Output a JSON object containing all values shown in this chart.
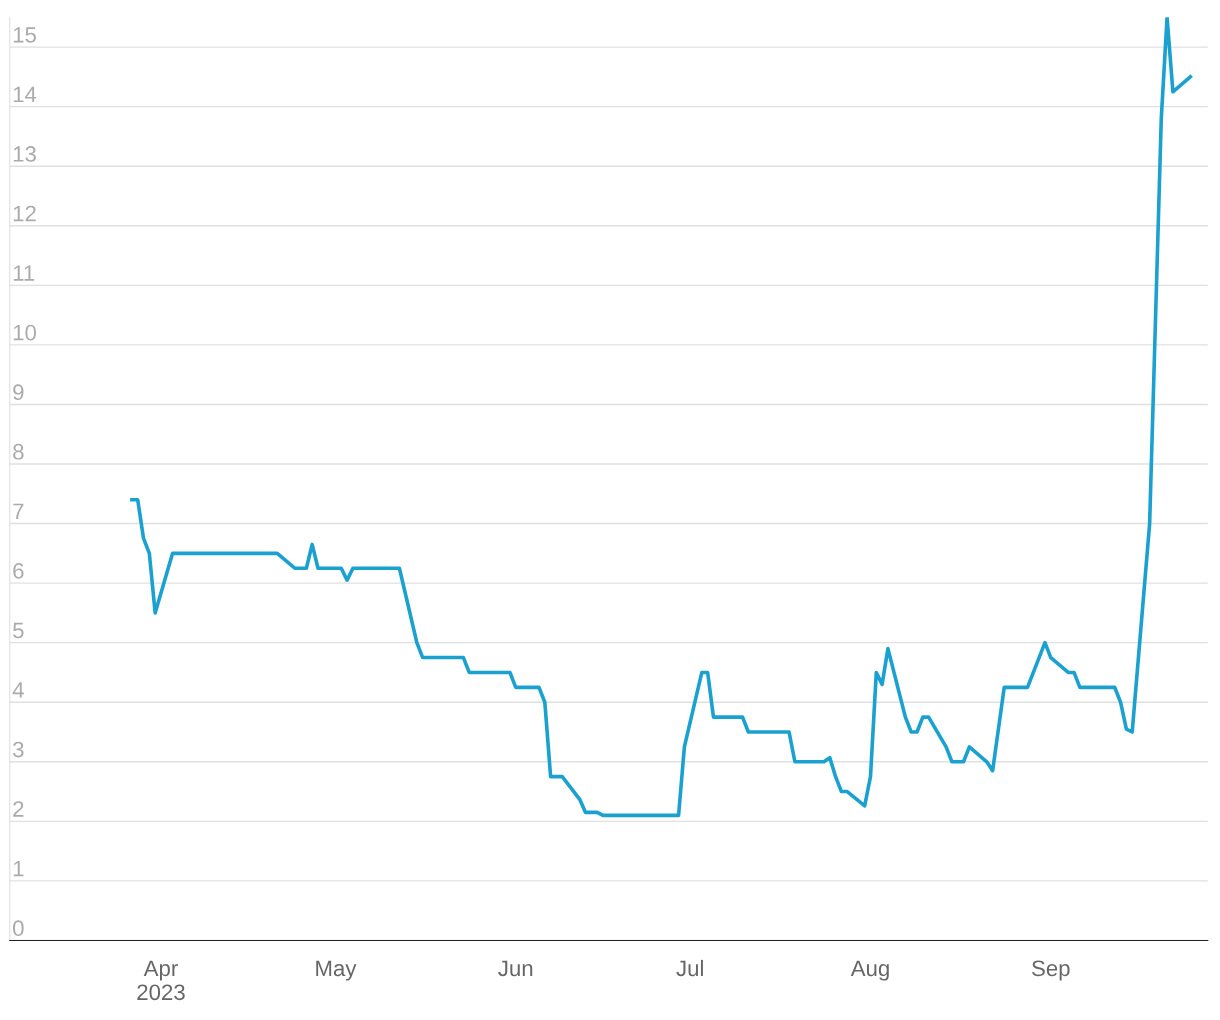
{
  "chart_data": {
    "type": "line",
    "x": [
      "2023-03-27",
      "2023-03-28",
      "2023-03-29",
      "2023-03-30",
      "2023-03-31",
      "2023-04-03",
      "2023-04-21",
      "2023-04-24",
      "2023-04-26",
      "2023-04-27",
      "2023-04-28",
      "2023-05-02",
      "2023-05-03",
      "2023-05-04",
      "2023-05-12",
      "2023-05-15",
      "2023-05-16",
      "2023-05-23",
      "2023-05-24",
      "2023-05-31",
      "2023-06-01",
      "2023-06-05",
      "2023-06-06",
      "2023-06-07",
      "2023-06-09",
      "2023-06-12",
      "2023-06-13",
      "2023-06-15",
      "2023-06-16",
      "2023-06-29",
      "2023-06-30",
      "2023-07-03",
      "2023-07-04",
      "2023-07-05",
      "2023-07-10",
      "2023-07-11",
      "2023-07-18",
      "2023-07-19",
      "2023-07-24",
      "2023-07-25",
      "2023-07-26",
      "2023-07-27",
      "2023-07-28",
      "2023-07-31",
      "2023-08-01",
      "2023-08-02",
      "2023-08-03",
      "2023-08-04",
      "2023-08-07",
      "2023-08-08",
      "2023-08-09",
      "2023-08-10",
      "2023-08-11",
      "2023-08-14",
      "2023-08-15",
      "2023-08-17",
      "2023-08-18",
      "2023-08-21",
      "2023-08-22",
      "2023-08-24",
      "2023-08-28",
      "2023-08-31",
      "2023-09-01",
      "2023-09-04",
      "2023-09-05",
      "2023-09-06",
      "2023-09-12",
      "2023-09-13",
      "2023-09-14",
      "2023-09-15",
      "2023-09-18",
      "2023-09-20",
      "2023-09-21",
      "2023-09-22",
      "2023-09-25"
    ],
    "series": [
      {
        "color": "#1ba1cf",
        "values": [
          7.4,
          7.4,
          6.75,
          6.5,
          5.5,
          6.5,
          6.5,
          6.25,
          6.25,
          6.65,
          6.25,
          6.25,
          6.05,
          6.25,
          6.25,
          5.0,
          4.75,
          4.75,
          4.5,
          4.5,
          4.25,
          4.25,
          4.0,
          2.75,
          2.75,
          2.37,
          2.15,
          2.15,
          2.1,
          2.1,
          3.25,
          4.5,
          4.5,
          3.75,
          3.75,
          3.5,
          3.5,
          3.0,
          3.0,
          3.07,
          2.75,
          2.5,
          2.5,
          2.26,
          2.75,
          4.5,
          4.3,
          4.9,
          3.75,
          3.5,
          3.5,
          3.75,
          3.75,
          3.25,
          3.0,
          3.0,
          3.25,
          3.0,
          2.85,
          4.25,
          4.25,
          5.0,
          4.75,
          4.5,
          4.5,
          4.25,
          4.25,
          4.0,
          3.55,
          3.5,
          7.0,
          13.8,
          15.5,
          14.25,
          14.5
        ]
      }
    ],
    "xlim": [
      "2023-03-06",
      "2023-09-28"
    ],
    "xticks": [
      {
        "value": "2023-04-01",
        "label": "Apr\n2023"
      },
      {
        "value": "2023-05-01",
        "label": "May"
      },
      {
        "value": "2023-06-01",
        "label": "Jun"
      },
      {
        "value": "2023-07-01",
        "label": "Jul"
      },
      {
        "value": "2023-08-01",
        "label": "Aug"
      },
      {
        "value": "2023-09-01",
        "label": "Sep"
      }
    ],
    "ylim": [
      0,
      15.5
    ],
    "yticks": [
      0,
      1,
      2,
      3,
      4,
      5,
      6,
      7,
      8,
      9,
      10,
      11,
      12,
      13,
      14,
      15
    ],
    "grid": "y",
    "legend": false,
    "marker": "none",
    "line_style": "solid"
  }
}
